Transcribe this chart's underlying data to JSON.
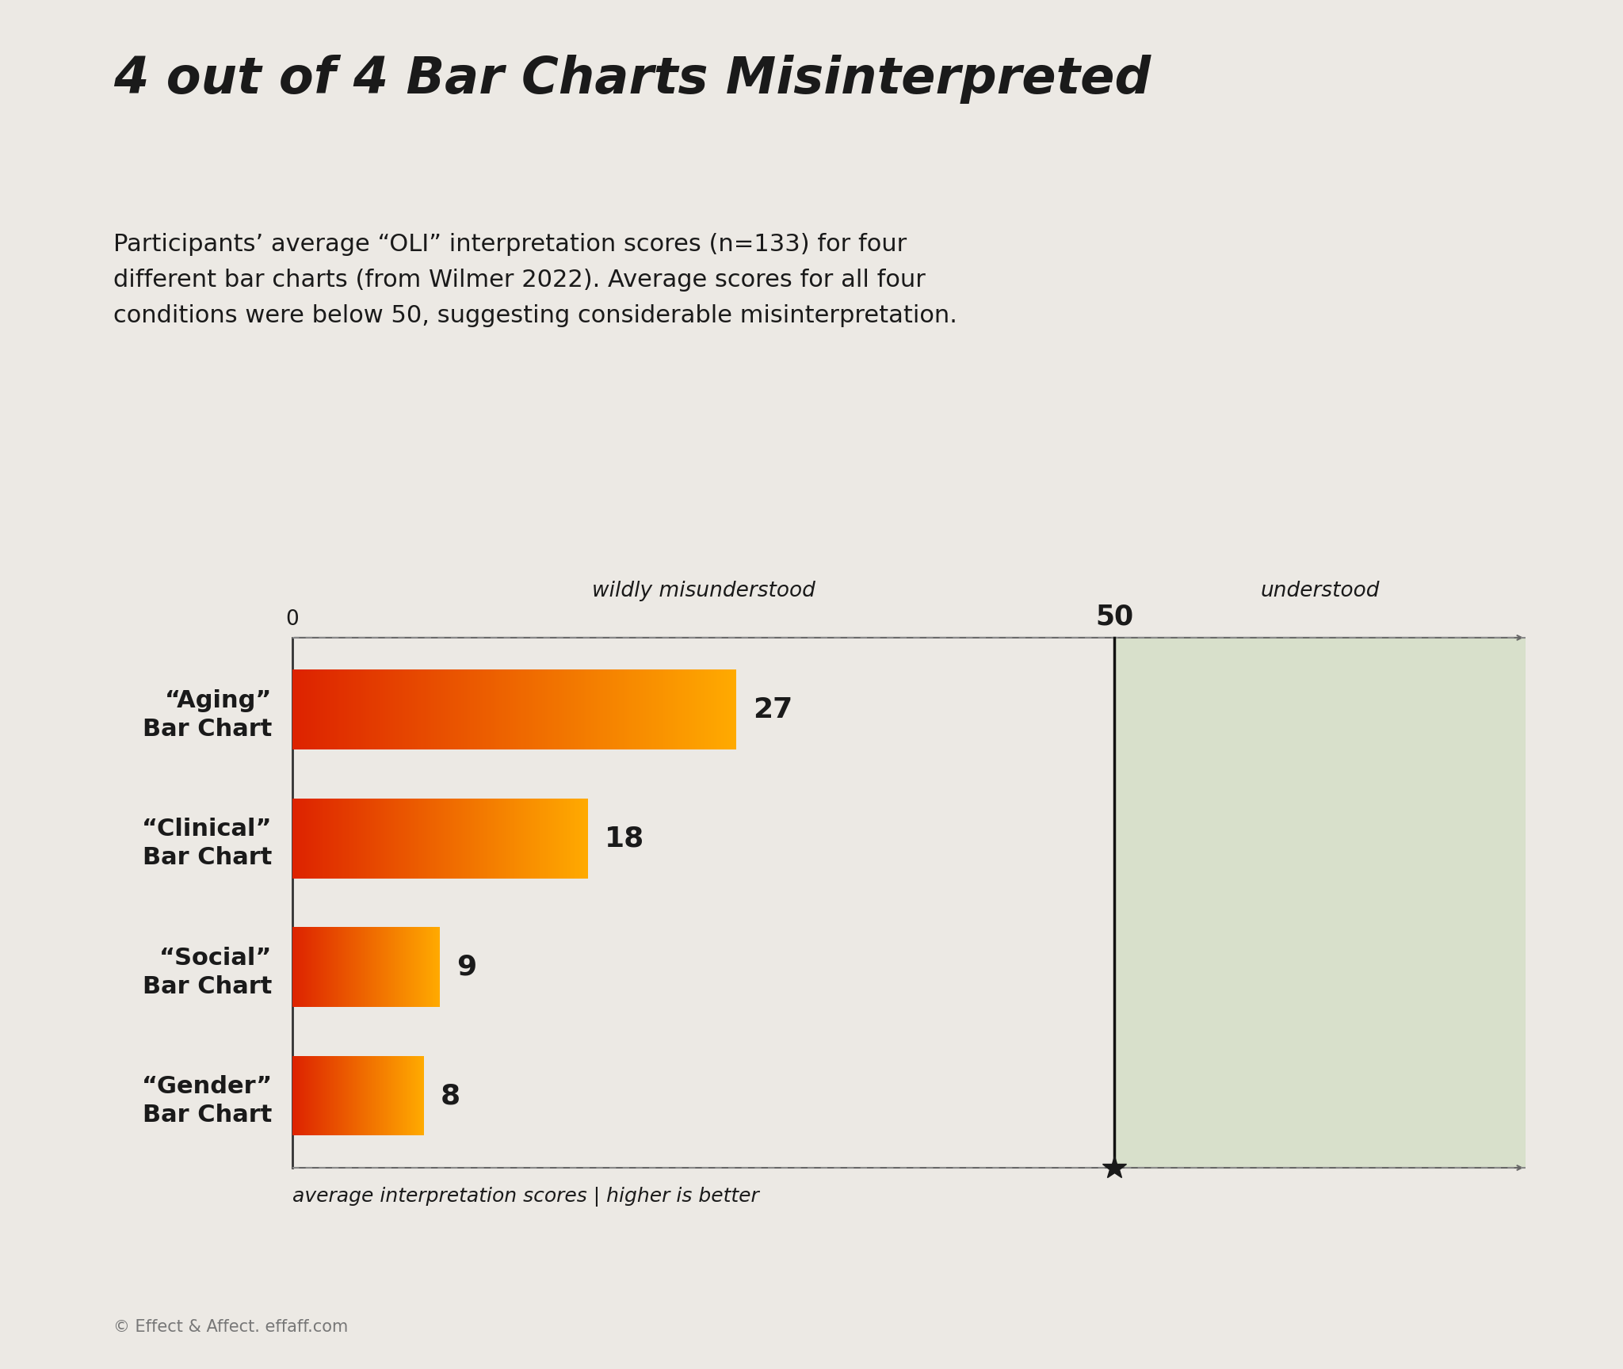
{
  "title": "4 out of 4 Bar Charts Misinterpreted",
  "subtitle": "Participants’ average “OLI” interpretation scores (n=133) for four\ndifferent bar charts (from Wilmer 2022). Average scores for all four\nconditions were below 50, suggesting considerable misinterpretation.",
  "categories": [
    "“Aging”\nBar Chart",
    "“Clinical”\nBar Chart",
    "“Social”\nBar Chart",
    "“Gender”\nBar Chart"
  ],
  "values": [
    27,
    18,
    9,
    8
  ],
  "background_color": "#ece9e4",
  "bar_color_left": "#dd2200",
  "bar_color_right": "#ffaa00",
  "threshold": 50,
  "xlim_max": 75,
  "xlabel": "average interpretation scores | higher is better",
  "label_wildly": "wildly misunderstood",
  "label_understood": "understood",
  "footer": "© Effect & Affect. effaff.com",
  "green_region_color": "#c8d9b8",
  "green_region_alpha": 0.55,
  "title_fontsize": 46,
  "subtitle_fontsize": 22,
  "bar_label_fontsize": 26,
  "annotation_fontsize": 19,
  "ylabel_fontsize": 22,
  "footer_fontsize": 15,
  "xlabel_fontsize": 18
}
